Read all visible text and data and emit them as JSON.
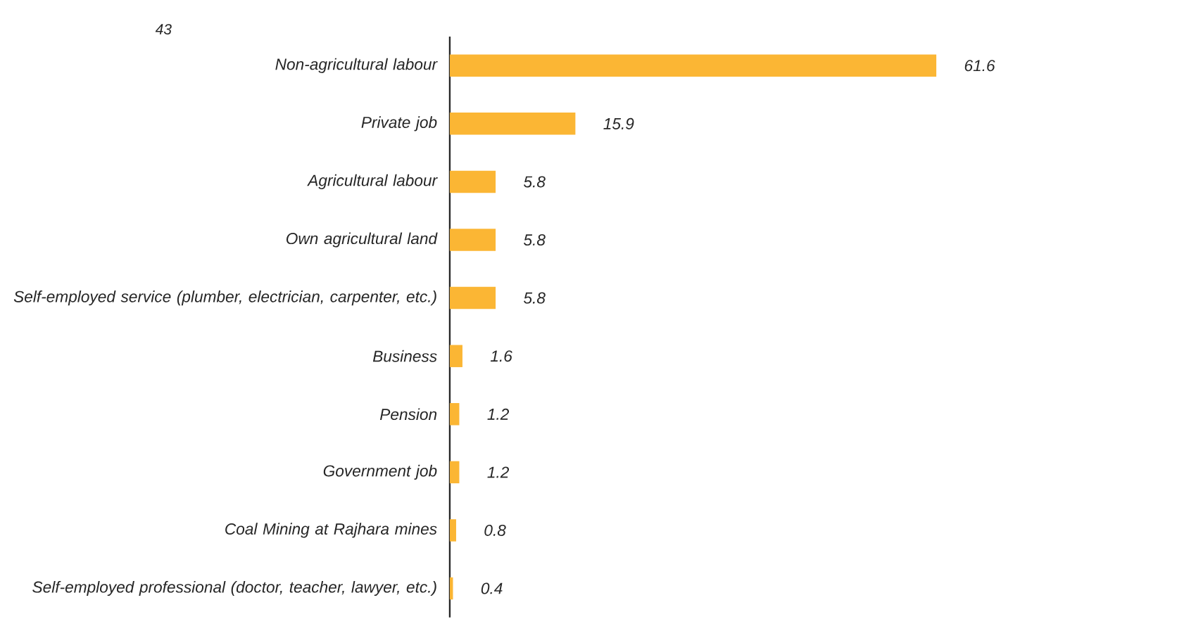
{
  "chart_data": {
    "type": "bar",
    "orientation": "horizontal",
    "categories": [
      "Non-agricultural labour",
      "Private job",
      "Agricultural labour",
      "Own agricultural land",
      "Self-employed service (plumber, electrician, carpenter, etc.)",
      "Business",
      "Pension",
      "Government job",
      "Coal Mining at Rajhara mines",
      "Self-employed professional (doctor, teacher, lawyer, etc.)"
    ],
    "values": [
      61.6,
      15.9,
      5.8,
      5.8,
      5.8,
      1.6,
      1.2,
      1.2,
      0.8,
      0.4
    ],
    "color": "#fbb634",
    "data_labels": true,
    "tick_labels": "y",
    "annotations": [
      "43"
    ]
  }
}
